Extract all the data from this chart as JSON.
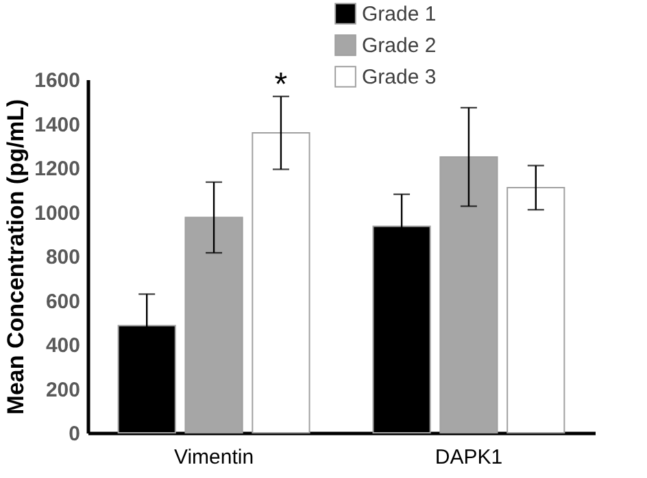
{
  "chart_data": {
    "type": "bar",
    "ylabel": "Mean Concentration (pg/mL)",
    "categories": [
      "Vimentin",
      "DAPK1"
    ],
    "series": [
      {
        "name": "Grade 1",
        "color": "#000000",
        "values": [
          485,
          935
        ],
        "errors": [
          143,
          145
        ]
      },
      {
        "name": "Grade 2",
        "color": "#a6a6a6",
        "values": [
          975,
          1249
        ],
        "errors": [
          160,
          223
        ]
      },
      {
        "name": "Grade 3",
        "color": "#ffffff",
        "values": [
          1358,
          1110
        ],
        "errors": [
          165,
          100
        ]
      }
    ],
    "annotations": [
      "*"
    ],
    "ylim": [
      0,
      1600
    ],
    "yticks": [
      0,
      200,
      400,
      600,
      800,
      1000,
      1200,
      1400,
      1600
    ],
    "grid": false,
    "legend": "top right"
  }
}
